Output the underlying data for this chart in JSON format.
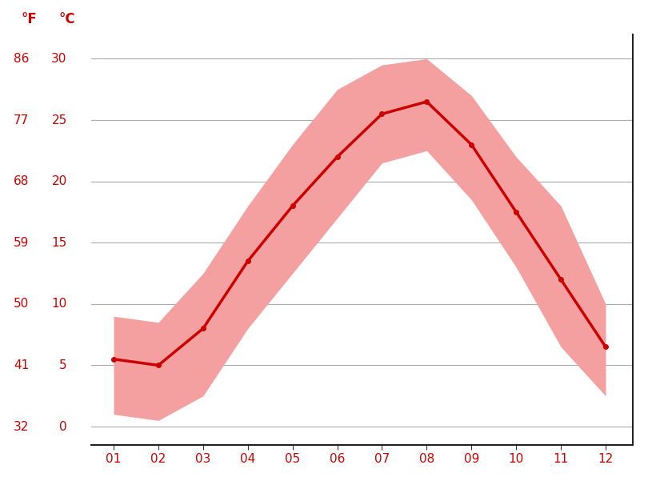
{
  "months": [
    1,
    2,
    3,
    4,
    5,
    6,
    7,
    8,
    9,
    10,
    11,
    12
  ],
  "month_labels": [
    "01",
    "02",
    "03",
    "04",
    "05",
    "06",
    "07",
    "08",
    "09",
    "10",
    "11",
    "12"
  ],
  "mean_temp": [
    5.5,
    5.0,
    8.0,
    13.5,
    18.0,
    22.0,
    25.5,
    26.5,
    23.0,
    17.5,
    12.0,
    6.5
  ],
  "temp_max": [
    9.0,
    8.5,
    12.5,
    18.0,
    23.0,
    27.5,
    29.5,
    30.0,
    27.0,
    22.0,
    18.0,
    10.0
  ],
  "temp_min": [
    1.0,
    0.5,
    2.5,
    8.0,
    12.5,
    17.0,
    21.5,
    22.5,
    18.5,
    13.0,
    6.5,
    2.5
  ],
  "y_ticks_c": [
    0,
    5,
    10,
    15,
    20,
    25,
    30
  ],
  "y_ticks_f": [
    32,
    41,
    50,
    59,
    68,
    77,
    86
  ],
  "line_color": "#cc0000",
  "fill_color": "#f5a0a0",
  "bg_color": "#ffffff",
  "grid_color": "#aaaaaa",
  "label_color": "#cc0000",
  "ylim_c": [
    -1.5,
    32
  ],
  "xlim": [
    0.5,
    12.6
  ]
}
